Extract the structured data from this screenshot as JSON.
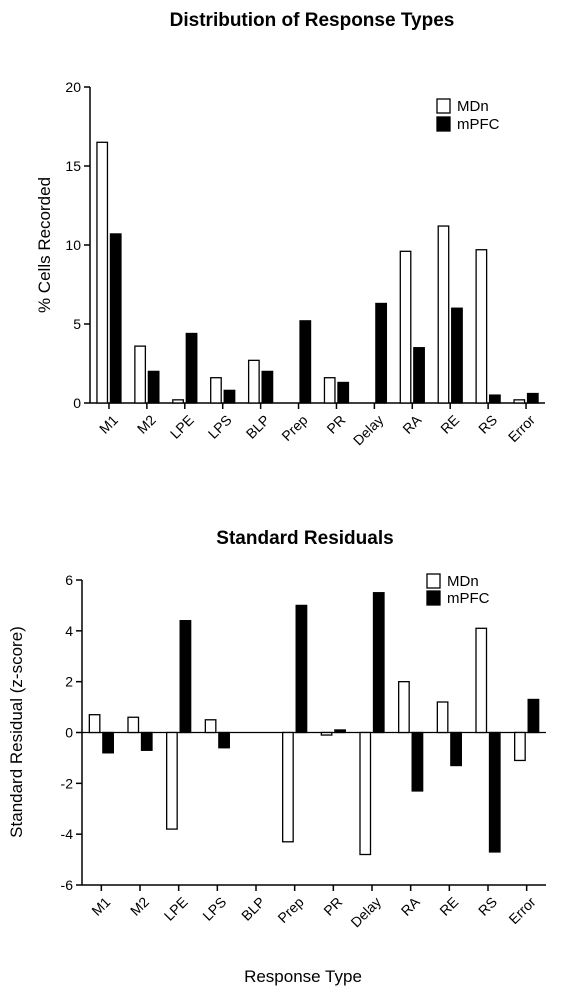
{
  "chart_data": [
    {
      "type": "bar",
      "title": "Distribution of Response Types",
      "xlabel": "",
      "ylabel": "%  Cells Recorded",
      "ylim": [
        0,
        20
      ],
      "yticks": [
        0,
        5,
        10,
        15,
        20
      ],
      "categories": [
        "M1",
        "M2",
        "LPE",
        "LPS",
        "BLP",
        "Prep",
        "PR",
        "Delay",
        "RA",
        "RE",
        "RS",
        "Error"
      ],
      "series": [
        {
          "name": "MDn",
          "fill": "#ffffff",
          "values": [
            16.5,
            3.6,
            0.2,
            1.6,
            2.7,
            0,
            1.6,
            0,
            9.6,
            11.2,
            9.7,
            0.2
          ]
        },
        {
          "name": "mPFC",
          "fill": "#000000",
          "values": [
            10.7,
            2.0,
            4.4,
            0.8,
            2.0,
            5.2,
            1.3,
            6.3,
            3.5,
            6.0,
            0.5,
            0.6
          ]
        }
      ],
      "legend_position": "top-right",
      "grid": false
    },
    {
      "type": "bar",
      "title": "Standard Residuals",
      "xlabel": "Response Type",
      "ylabel": "Standard Residual (z-score)",
      "ylim": [
        -6,
        6
      ],
      "yticks": [
        -6,
        -4,
        -2,
        0,
        2,
        4,
        6
      ],
      "categories": [
        "M1",
        "M2",
        "LPE",
        "LPS",
        "BLP",
        "Prep",
        "PR",
        "Delay",
        "RA",
        "RE",
        "RS",
        "Error"
      ],
      "series": [
        {
          "name": "MDn",
          "fill": "#ffffff",
          "values": [
            0.7,
            0.6,
            -3.8,
            0.5,
            0,
            -4.3,
            -0.1,
            -4.8,
            2.0,
            1.2,
            4.1,
            -1.1
          ]
        },
        {
          "name": "mPFC",
          "fill": "#000000",
          "values": [
            -0.8,
            -0.7,
            4.4,
            -0.6,
            0,
            5.0,
            0.1,
            5.5,
            -2.3,
            -1.3,
            -4.7,
            1.3
          ]
        }
      ],
      "legend_position": "top-right",
      "grid": false
    }
  ]
}
